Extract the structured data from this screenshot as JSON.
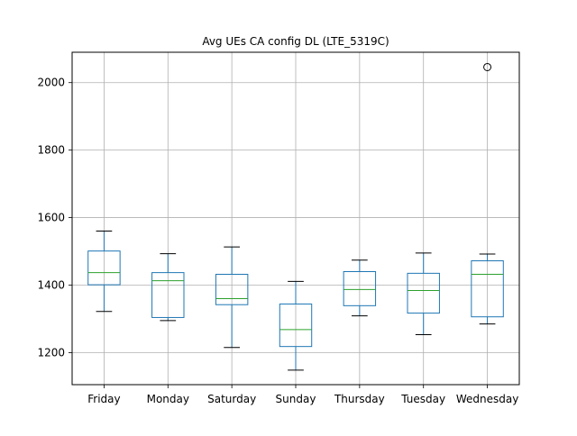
{
  "chart_data": {
    "type": "box",
    "title": "Avg UEs CA config DL (LTE_5319C)",
    "xlabel": "",
    "ylabel": "",
    "ylim": [
      1105,
      2090
    ],
    "yticks": [
      1200,
      1400,
      1600,
      1800,
      2000
    ],
    "grid": true,
    "categories": [
      "Friday",
      "Monday",
      "Saturday",
      "Sunday",
      "Thursday",
      "Tuesday",
      "Wednesday"
    ],
    "boxes": [
      {
        "whisker_low": 1322,
        "q1": 1401,
        "median": 1437,
        "q3": 1501,
        "whisker_high": 1560,
        "outliers": []
      },
      {
        "whisker_low": 1295,
        "q1": 1304,
        "median": 1413,
        "q3": 1437,
        "whisker_high": 1493,
        "outliers": []
      },
      {
        "whisker_low": 1215,
        "q1": 1342,
        "median": 1360,
        "q3": 1432,
        "whisker_high": 1513,
        "outliers": []
      },
      {
        "whisker_low": 1148,
        "q1": 1218,
        "median": 1268,
        "q3": 1344,
        "whisker_high": 1411,
        "outliers": []
      },
      {
        "whisker_low": 1309,
        "q1": 1339,
        "median": 1387,
        "q3": 1440,
        "whisker_high": 1474,
        "outliers": []
      },
      {
        "whisker_low": 1253,
        "q1": 1317,
        "median": 1384,
        "q3": 1435,
        "whisker_high": 1495,
        "outliers": []
      },
      {
        "whisker_low": 1285,
        "q1": 1306,
        "median": 1432,
        "q3": 1472,
        "whisker_high": 1492,
        "outliers": [
          2046
        ]
      }
    ],
    "colors": {
      "box": "#1f77b4",
      "median": "#2ca02c",
      "whisker": "#1f77b4",
      "cap": "#000000",
      "outlier": "#000000",
      "grid": "#b0b0b0",
      "axes": "#000000"
    }
  }
}
